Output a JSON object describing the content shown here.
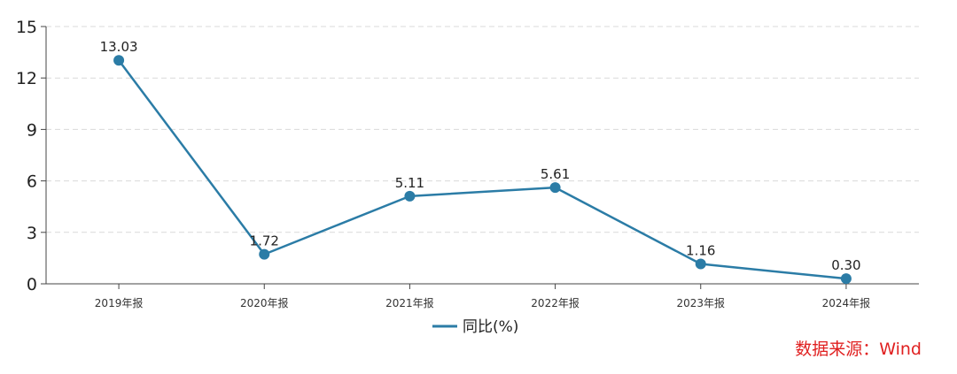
{
  "chart_data": {
    "type": "line",
    "categories": [
      "2019年报",
      "2020年报",
      "2021年报",
      "2022年报",
      "2023年报",
      "2024年报"
    ],
    "series": [
      {
        "name": "同比(%)",
        "values": [
          13.03,
          1.72,
          5.11,
          5.61,
          1.16,
          0.3
        ]
      }
    ],
    "data_labels": [
      "13.03",
      "1.72",
      "5.11",
      "5.61",
      "1.16",
      "0.30"
    ],
    "y_ticks": [
      "0",
      "3",
      "6",
      "9",
      "12",
      "15"
    ],
    "ylim": [
      0,
      15
    ],
    "grid": "horizontal dashed",
    "legend_position": "bottom-center",
    "title": "",
    "xlabel": "",
    "ylabel": "",
    "line_color": "#2b7ca6",
    "grid_color": "#d9d9d9",
    "axis_color": "#444444"
  },
  "source_note": "数据来源：Wind",
  "colors": {
    "source_text": "#e02020"
  }
}
